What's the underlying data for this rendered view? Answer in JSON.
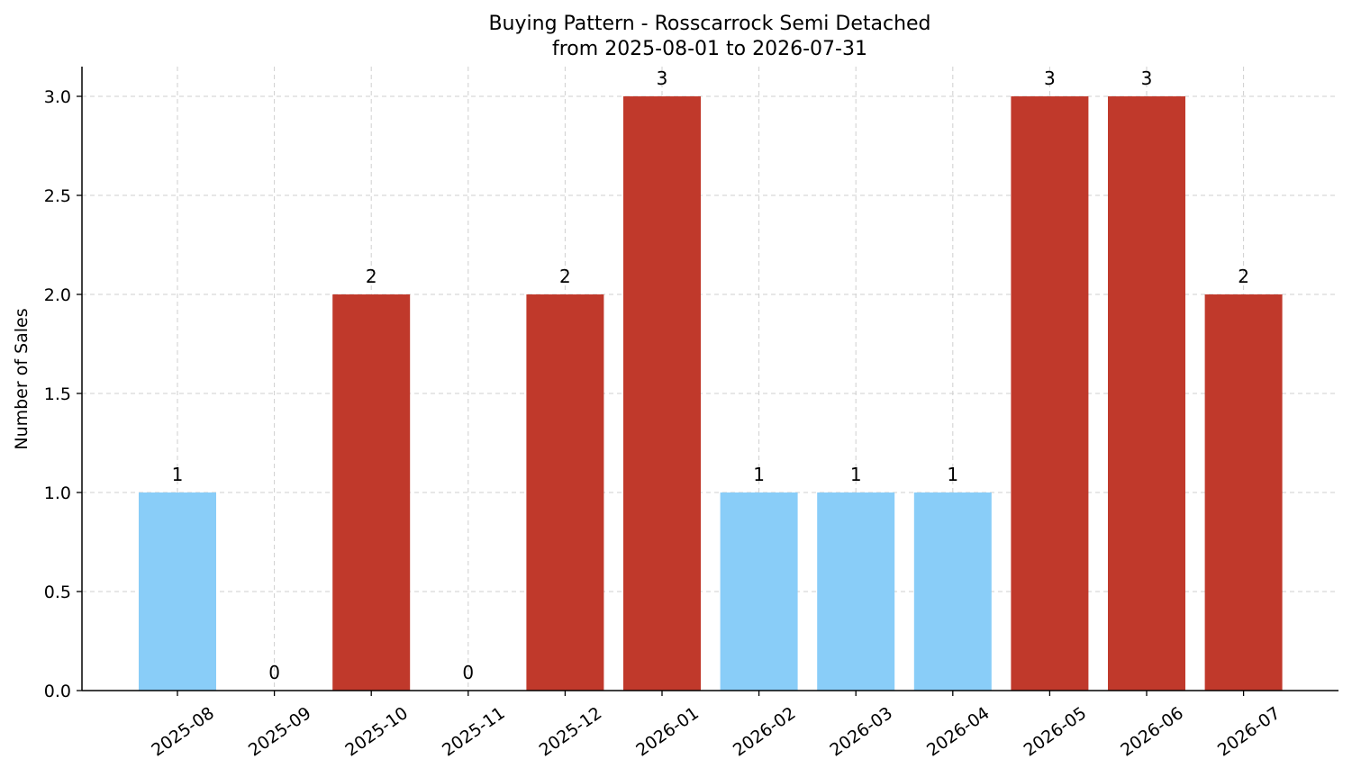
{
  "chart_data": {
    "type": "bar",
    "title": "Buying Pattern - Rosscarrock Semi Detached",
    "subtitle": "from 2025-08-01 to 2026-07-31",
    "xlabel": "",
    "ylabel": "Number of Sales",
    "ylim": [
      0,
      3.15
    ],
    "yticks": [
      "0.0",
      "0.5",
      "1.0",
      "1.5",
      "2.0",
      "2.5",
      "3.0"
    ],
    "grid": true,
    "categories": [
      "2025-08",
      "2025-09",
      "2025-10",
      "2025-11",
      "2025-12",
      "2026-01",
      "2026-02",
      "2026-03",
      "2026-04",
      "2026-05",
      "2026-06",
      "2026-07"
    ],
    "values": [
      1,
      0,
      2,
      0,
      2,
      3,
      1,
      1,
      1,
      3,
      3,
      2
    ],
    "colors": {
      "low": "#89CDF8",
      "high": "#C0392B"
    }
  }
}
